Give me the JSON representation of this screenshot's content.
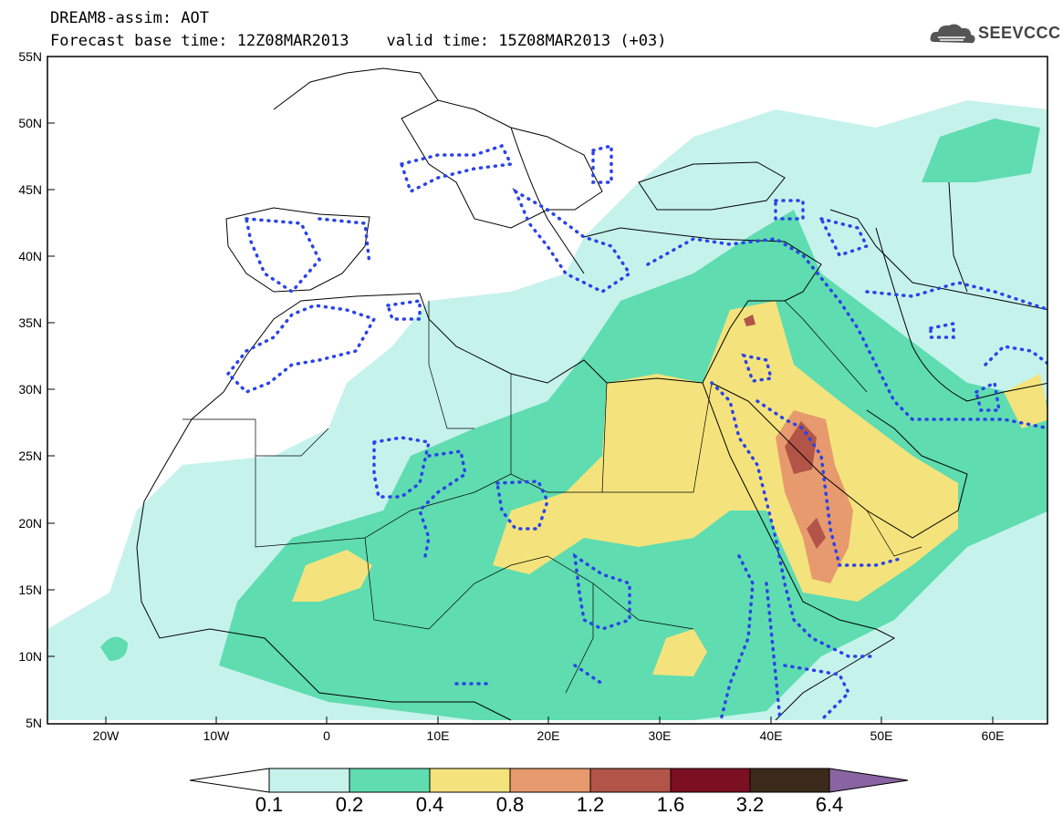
{
  "header": {
    "line1": "DREAM8-assim: AOT",
    "line2": "Forecast base time: 12Z08MAR2013    valid time: 15Z08MAR2013 (+03)"
  },
  "logo": {
    "text": "SEEVCCC",
    "icon": "cloud-icon"
  },
  "map": {
    "lat_labels": [
      "55N",
      "50N",
      "45N",
      "40N",
      "35N",
      "30N",
      "25N",
      "20N",
      "15N",
      "10N",
      "5N"
    ],
    "lon_labels": [
      "20W",
      "10W",
      "0",
      "10E",
      "20E",
      "30E",
      "40E",
      "50E",
      "60E"
    ]
  },
  "colorbar": {
    "labels": [
      "0.1",
      "0.2",
      "0.4",
      "0.8",
      "1.2",
      "1.6",
      "3.2",
      "6.4"
    ],
    "colors": [
      "#c6f2ec",
      "#5fdcb0",
      "#f4e37c",
      "#e69a6e",
      "#b35448",
      "#7d0f22",
      "#3b2a1a"
    ],
    "lower_color": "#ffffff",
    "upper_color": "#8a64a2"
  }
}
